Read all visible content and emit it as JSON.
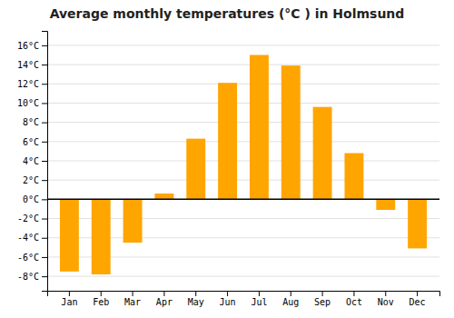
{
  "chart_data": {
    "type": "bar",
    "title": "Average monthly temperatures (°C ) in Holmsund",
    "categories": [
      "Jan",
      "Feb",
      "Mar",
      "Apr",
      "May",
      "Jun",
      "Jul",
      "Aug",
      "Sep",
      "Oct",
      "Nov",
      "Dec"
    ],
    "values": [
      -7.5,
      -7.8,
      -4.5,
      0.6,
      6.3,
      12.1,
      15.0,
      13.9,
      9.6,
      4.8,
      -1.1,
      -5.1
    ],
    "color": "#FFA500",
    "ylim": [
      -9.5,
      17.5
    ],
    "yticks": [
      {
        "value": -8,
        "label": "-8°C"
      },
      {
        "value": -6,
        "label": "-6°C"
      },
      {
        "value": -4,
        "label": "-4°C"
      },
      {
        "value": -2,
        "label": "-2°C"
      },
      {
        "value": 0,
        "label": "0°C"
      },
      {
        "value": 2,
        "label": "2°C"
      },
      {
        "value": 4,
        "label": "4°C"
      },
      {
        "value": 6,
        "label": "6°C"
      },
      {
        "value": 8,
        "label": "8°C"
      },
      {
        "value": 10,
        "label": "10°C"
      },
      {
        "value": 12,
        "label": "12°C"
      },
      {
        "value": 14,
        "label": "14°C"
      },
      {
        "value": 16,
        "label": "16°C"
      }
    ],
    "grid": true
  }
}
